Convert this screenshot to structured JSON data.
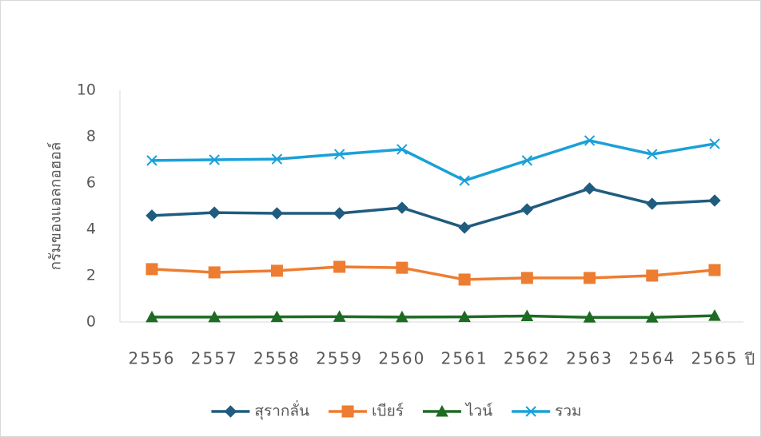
{
  "chart_data": {
    "type": "line",
    "x_label": "ปี",
    "y_label": "กรัมของแอลกอฮอล์",
    "categories": [
      "2556",
      "2557",
      "2558",
      "2559",
      "2560",
      "2561",
      "2562",
      "2563",
      "2564",
      "2565"
    ],
    "series": [
      {
        "name": "สุรากลั่น",
        "color": "#1f5c7f",
        "marker": "diamond",
        "values": [
          4.59,
          4.72,
          4.69,
          4.69,
          4.93,
          4.07,
          4.86,
          5.76,
          5.1,
          5.24
        ]
      },
      {
        "name": "เบียร์",
        "color": "#ed7d31",
        "marker": "square",
        "values": [
          2.28,
          2.14,
          2.21,
          2.38,
          2.34,
          1.83,
          1.9,
          1.9,
          2.0,
          2.24
        ]
      },
      {
        "name": "ไวน์",
        "color": "#1e6b24",
        "marker": "triangle",
        "values": [
          0.21,
          0.21,
          0.22,
          0.23,
          0.21,
          0.22,
          0.26,
          0.2,
          0.2,
          0.27
        ]
      },
      {
        "name": "รวม",
        "color": "#1ba0d8",
        "marker": "x",
        "values": [
          6.97,
          7.0,
          7.03,
          7.24,
          7.45,
          6.1,
          6.97,
          7.83,
          7.24,
          7.69
        ]
      }
    ],
    "ylim": [
      0,
      10
    ],
    "yticks": [
      0,
      2,
      4,
      6,
      8,
      10
    ],
    "grid": false,
    "legend": "bottom"
  }
}
